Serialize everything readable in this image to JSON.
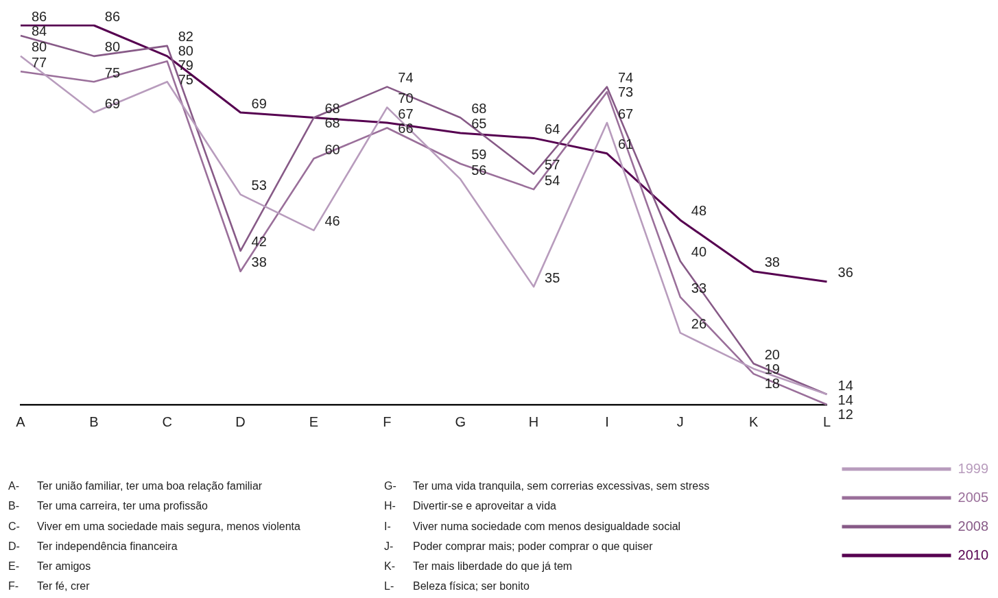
{
  "chart_data": {
    "type": "line",
    "categories": [
      "A",
      "B",
      "C",
      "D",
      "E",
      "F",
      "G",
      "H",
      "I",
      "J",
      "K",
      "L"
    ],
    "series": [
      {
        "name": "1999",
        "color": "#b89cbd",
        "values": [
          80,
          69,
          75,
          53,
          46,
          70,
          56,
          35,
          67,
          26,
          19,
          14
        ]
      },
      {
        "name": "2005",
        "color": "#9a6f9a",
        "values": [
          77,
          75,
          79,
          38,
          60,
          66,
          59,
          54,
          73,
          33,
          18,
          12
        ]
      },
      {
        "name": "2008",
        "color": "#875a87",
        "values": [
          84,
          80,
          82,
          42,
          68,
          74,
          68,
          57,
          74,
          40,
          20,
          14
        ]
      },
      {
        "name": "2010",
        "color": "#560050",
        "values": [
          86,
          86,
          80,
          69,
          68,
          67,
          65,
          64,
          61,
          48,
          38,
          36
        ]
      }
    ],
    "tick_labels": "x",
    "grid": false,
    "legend": "bottom right",
    "data_labels": true,
    "marker": "none",
    "line_style": "solid",
    "annotations": [
      "A- Ter união familiar, ter uma boa relação familiar",
      "B- Ter uma carreira, ter uma profissão",
      "C- Viver em uma sociedade mais segura, menos violenta",
      "D- Ter independência financeira",
      "E- Ter amigos",
      "F- Ter fé, crer",
      "G- Ter uma vida tranquila, sem correrias excessivas, sem stress",
      "H- Divertir-se e aproveitar a vida",
      "I- Viver numa sociedade com menos desigualdade social",
      "J- Poder comprar mais; poder comprar o que quiser",
      "K- Ter mais liberdade do que já tem",
      "L- Beleza física; ser bonito"
    ]
  }
}
